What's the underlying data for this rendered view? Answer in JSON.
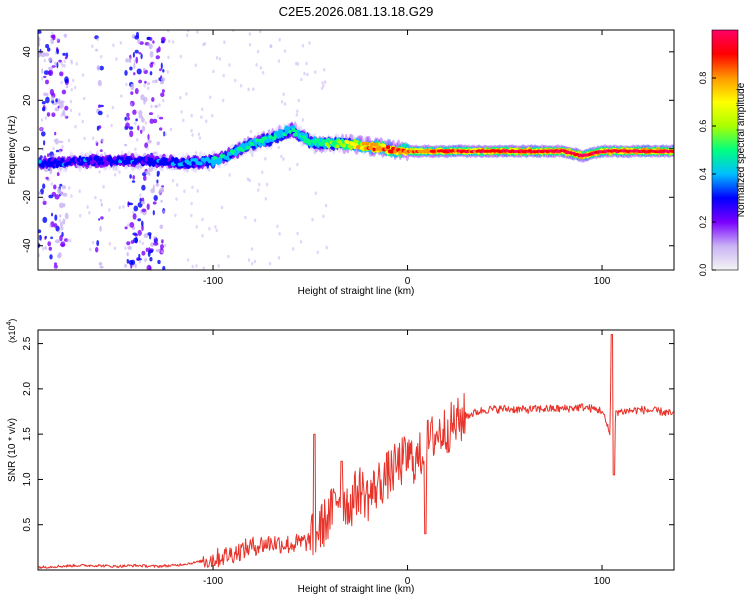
{
  "title": "C2E5.2026.081.13.18.G29",
  "colors": {
    "snr_line": "#e8332a",
    "axis": "#000000",
    "spectral_stops": [
      "#f5f5f5",
      "#c9b3f5",
      "#7a00ff",
      "#0000ff",
      "#00bfff",
      "#00ff7f",
      "#aaff00",
      "#ffff00",
      "#ff9900",
      "#ff0000",
      "#ff0066"
    ]
  },
  "chart_data": [
    {
      "type": "heatmap",
      "title": "C2E5.2026.081.13.18.G29",
      "xlabel": "Height of straight line (km)",
      "ylabel": "Frequency (Hz)",
      "xlim": [
        -190,
        137
      ],
      "ylim": [
        -50,
        49
      ],
      "xticks": [
        -100,
        0,
        100
      ],
      "xtick_labels": [
        "-100",
        "0",
        "100"
      ],
      "yticks": [
        -40,
        -20,
        0,
        20,
        40
      ],
      "ytick_labels": [
        "-40",
        "-20",
        "0",
        "20",
        "40"
      ],
      "colorbar": {
        "label": "Normalized spectral amplitude",
        "range": [
          0.0,
          1.0
        ],
        "ticks": [
          0.0,
          0.2,
          0.4,
          0.6,
          0.8
        ],
        "tick_labels": [
          "0.0",
          "0.2",
          "0.4",
          "0.6",
          "0.8"
        ]
      },
      "ridge": {
        "x": [
          -190,
          -160,
          -130,
          -115,
          -100,
          -90,
          -80,
          -70,
          -60,
          -50,
          -40,
          -30,
          -20,
          -10,
          0,
          20,
          40,
          60,
          80,
          90,
          100,
          110,
          137
        ],
        "y": [
          -6,
          -5,
          -5,
          -6,
          -5,
          -2,
          2,
          4,
          8,
          3,
          2,
          2,
          1,
          0,
          -1,
          -1,
          -1,
          -1,
          -1,
          -3,
          -1,
          -1,
          -1
        ],
        "amplitude": [
          0.3,
          0.3,
          0.3,
          0.35,
          0.4,
          0.45,
          0.45,
          0.45,
          0.45,
          0.5,
          0.55,
          0.65,
          0.8,
          0.85,
          0.85,
          0.9,
          0.9,
          0.95,
          0.95,
          0.95,
          0.95,
          0.95,
          0.95
        ]
      },
      "noise_bands_x": [
        [
          -190,
          -175
        ],
        [
          -160,
          -157
        ],
        [
          -145,
          -125
        ]
      ]
    },
    {
      "type": "line",
      "xlabel": "Height of straight line (km)",
      "ylabel": "SNR (10 * v/v)",
      "y_multiplier_label": "(x10",
      "y_multiplier_exponent": "4",
      "y_multiplier_close": ")",
      "xlim": [
        -190,
        137
      ],
      "ylim": [
        0,
        2.65
      ],
      "xticks": [
        -100,
        0,
        100
      ],
      "xtick_labels": [
        "-100",
        "0",
        "100"
      ],
      "yticks": [
        0.5,
        1.0,
        1.5,
        2.0,
        2.5
      ],
      "ytick_labels": [
        "0.5",
        "1.0",
        "1.5",
        "2.0",
        "2.5"
      ],
      "series": [
        {
          "name": "SNR",
          "x": [
            -190,
            -180,
            -170,
            -160,
            -150,
            -140,
            -130,
            -120,
            -110,
            -100,
            -90,
            -80,
            -70,
            -60,
            -50,
            -40,
            -35,
            -30,
            -25,
            -20,
            -15,
            -10,
            -5,
            0,
            5,
            10,
            15,
            20,
            25,
            30,
            35,
            40,
            50,
            60,
            70,
            80,
            90,
            100,
            104,
            105,
            106,
            107,
            108,
            110,
            115,
            120,
            130,
            137
          ],
          "y": [
            0.03,
            0.04,
            0.05,
            0.05,
            0.04,
            0.05,
            0.04,
            0.05,
            0.08,
            0.12,
            0.18,
            0.26,
            0.3,
            0.28,
            0.32,
            0.6,
            0.85,
            0.7,
            0.9,
            0.8,
            0.95,
            1.05,
            1.15,
            1.25,
            1.2,
            1.4,
            1.5,
            1.55,
            1.62,
            1.7,
            1.74,
            1.77,
            1.78,
            1.77,
            1.78,
            1.78,
            1.8,
            1.76,
            1.5,
            2.6,
            1.1,
            1.76,
            1.75,
            1.75,
            1.76,
            1.77,
            1.75,
            1.72
          ],
          "spikes": [
            {
              "x": -48,
              "y": 1.5
            },
            {
              "x": -34,
              "y": 1.2
            },
            {
              "x": 9,
              "y": 0.4
            },
            {
              "x": 105,
              "y": 2.6
            },
            {
              "x": 106,
              "y": 1.05
            }
          ]
        }
      ]
    }
  ]
}
